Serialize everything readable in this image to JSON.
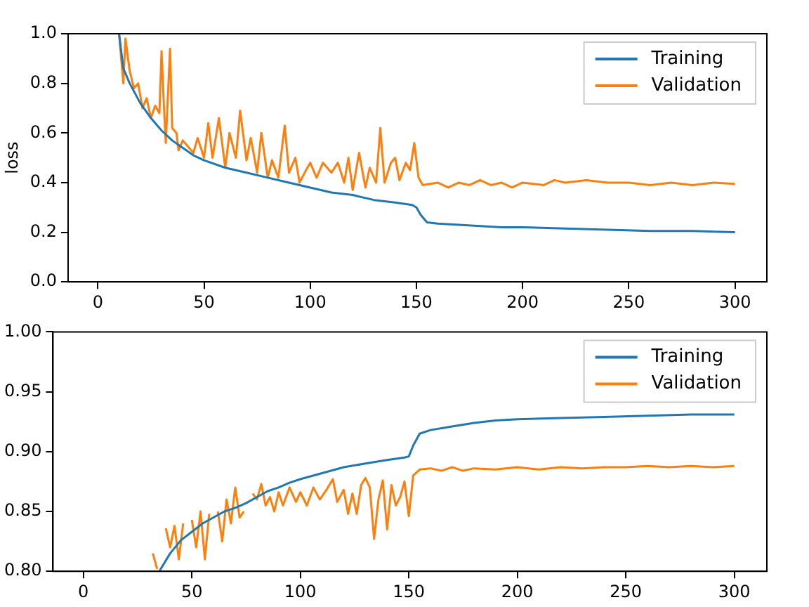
{
  "chart_data": [
    {
      "type": "line",
      "ylabel": "loss",
      "xlim": [
        -14,
        315
      ],
      "xticks": [
        0,
        50,
        100,
        150,
        200,
        250,
        300
      ],
      "ylim": [
        0,
        1
      ],
      "yticks": [
        {
          "value": 0,
          "label": "0.0"
        },
        0.2,
        0.4,
        0.6,
        0.8,
        {
          "value": 1,
          "label": "1.0"
        }
      ],
      "legend": "top right",
      "grid": false,
      "series": [
        {
          "name": "Training",
          "color": "#1f77b4",
          "x": [
            10,
            12,
            15,
            20,
            25,
            30,
            35,
            40,
            45,
            50,
            60,
            70,
            80,
            90,
            100,
            110,
            120,
            130,
            140,
            148,
            150,
            152,
            155,
            160,
            170,
            180,
            190,
            200,
            220,
            240,
            260,
            280,
            300
          ],
          "values": [
            1.0,
            0.86,
            0.8,
            0.72,
            0.66,
            0.61,
            0.57,
            0.54,
            0.51,
            0.49,
            0.46,
            0.44,
            0.42,
            0.4,
            0.38,
            0.36,
            0.35,
            0.33,
            0.32,
            0.31,
            0.3,
            0.27,
            0.24,
            0.235,
            0.23,
            0.225,
            0.22,
            0.22,
            0.215,
            0.21,
            0.205,
            0.205,
            0.2
          ]
        },
        {
          "name": "Validation",
          "color": "#ff7f0e",
          "x": [
            10,
            12,
            13,
            15,
            17,
            19,
            21,
            23,
            25,
            27,
            29,
            30,
            31,
            32,
            34,
            35,
            37,
            38,
            40,
            42,
            45,
            47,
            50,
            52,
            54,
            57,
            60,
            62,
            65,
            67,
            70,
            72,
            75,
            77,
            80,
            82,
            85,
            88,
            90,
            93,
            95,
            98,
            100,
            103,
            106,
            110,
            113,
            116,
            118,
            120,
            123,
            126,
            128,
            131,
            133,
            135,
            138,
            140,
            142,
            145,
            147,
            149,
            151,
            153,
            160,
            165,
            170,
            175,
            180,
            185,
            190,
            195,
            200,
            210,
            215,
            220,
            230,
            240,
            250,
            260,
            270,
            280,
            290,
            300
          ],
          "values": [
            1.0,
            0.8,
            0.98,
            0.85,
            0.78,
            0.8,
            0.7,
            0.74,
            0.66,
            0.71,
            0.68,
            0.93,
            0.73,
            0.56,
            0.94,
            0.62,
            0.6,
            0.53,
            0.57,
            0.55,
            0.52,
            0.58,
            0.5,
            0.64,
            0.5,
            0.66,
            0.46,
            0.6,
            0.5,
            0.69,
            0.49,
            0.58,
            0.44,
            0.6,
            0.42,
            0.49,
            0.42,
            0.63,
            0.44,
            0.5,
            0.4,
            0.45,
            0.48,
            0.42,
            0.48,
            0.44,
            0.48,
            0.4,
            0.5,
            0.37,
            0.52,
            0.38,
            0.46,
            0.4,
            0.62,
            0.4,
            0.48,
            0.5,
            0.41,
            0.48,
            0.45,
            0.56,
            0.42,
            0.39,
            0.4,
            0.38,
            0.4,
            0.39,
            0.41,
            0.39,
            0.4,
            0.38,
            0.4,
            0.39,
            0.41,
            0.4,
            0.41,
            0.4,
            0.4,
            0.39,
            0.4,
            0.39,
            0.4,
            0.395
          ]
        }
      ]
    },
    {
      "type": "line",
      "xlim": [
        -14,
        315
      ],
      "xticks": [
        0,
        50,
        100,
        150,
        200,
        250,
        300
      ],
      "ylim": [
        0.8,
        1
      ],
      "yticks": [
        {
          "value": 0.8,
          "label": "0.80"
        },
        0.85,
        {
          "value": 0.9,
          "label": "0.90"
        },
        0.95,
        {
          "value": 1,
          "label": "1.00"
        }
      ],
      "legend": "top right",
      "grid": false,
      "series": [
        {
          "name": "Training",
          "color": "#1f77b4",
          "x": [
            35,
            40,
            45,
            50,
            55,
            60,
            65,
            70,
            75,
            80,
            85,
            90,
            95,
            100,
            110,
            120,
            130,
            140,
            148,
            150,
            152,
            155,
            160,
            170,
            180,
            190,
            200,
            220,
            240,
            260,
            280,
            300
          ],
          "values": [
            0.8,
            0.815,
            0.826,
            0.833,
            0.84,
            0.845,
            0.85,
            0.853,
            0.857,
            0.862,
            0.867,
            0.87,
            0.874,
            0.877,
            0.882,
            0.887,
            0.89,
            0.893,
            0.895,
            0.896,
            0.905,
            0.915,
            0.918,
            0.921,
            0.924,
            0.926,
            0.927,
            0.928,
            0.929,
            0.93,
            0.931,
            0.931
          ]
        },
        {
          "name": "Validation",
          "color": "#ff7f0e",
          "x": [
            32,
            34,
            36,
            38,
            40,
            42,
            44,
            46,
            48,
            50,
            52,
            54,
            56,
            58,
            60,
            62,
            64,
            66,
            68,
            70,
            72,
            74,
            76,
            78,
            80,
            82,
            84,
            86,
            88,
            90,
            92,
            95,
            98,
            100,
            103,
            106,
            109,
            112,
            115,
            117,
            120,
            122,
            124,
            126,
            128,
            130,
            132,
            134,
            136,
            138,
            140,
            142,
            144,
            146,
            148,
            150,
            152,
            155,
            160,
            165,
            170,
            175,
            180,
            190,
            200,
            210,
            220,
            230,
            240,
            250,
            260,
            270,
            280,
            290,
            300
          ],
          "values": [
            0.815,
            0.802,
            null,
            0.836,
            0.82,
            0.838,
            0.81,
            0.84,
            null,
            0.843,
            0.82,
            0.85,
            0.81,
            0.848,
            null,
            0.85,
            0.825,
            0.86,
            0.84,
            0.87,
            0.845,
            0.85,
            null,
            0.865,
            0.86,
            0.873,
            0.855,
            0.862,
            0.85,
            0.866,
            0.855,
            0.87,
            0.858,
            0.866,
            0.855,
            0.87,
            0.86,
            0.868,
            0.877,
            0.858,
            0.868,
            0.848,
            0.865,
            0.848,
            0.872,
            0.878,
            0.87,
            0.827,
            0.86,
            0.876,
            0.835,
            0.872,
            0.855,
            0.862,
            0.875,
            0.846,
            0.88,
            0.885,
            0.886,
            0.884,
            0.887,
            0.884,
            0.886,
            0.885,
            0.887,
            0.885,
            0.887,
            0.886,
            0.887,
            0.887,
            0.888,
            0.887,
            0.888,
            0.887,
            0.888
          ]
        }
      ]
    }
  ]
}
